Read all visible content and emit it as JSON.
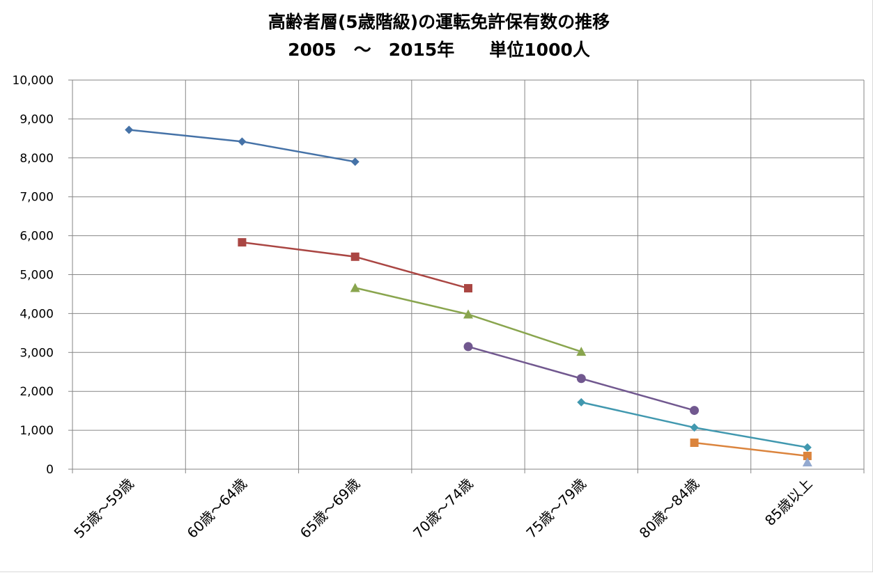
{
  "chart_data": {
    "type": "line",
    "title": "高齢者層(5歳階級)の運転免許保有数の推移",
    "subtitle": "2005　～　2015年　　単位1000人",
    "xlabel": "",
    "ylabel": "",
    "categories": [
      "55歳～59歳",
      "60歳～64歳",
      "65歳～69歳",
      "70歳～74歳",
      "75歳～79歳",
      "80歳～84歳",
      "85歳以上"
    ],
    "ylim": [
      0,
      10000
    ],
    "yticks": [
      0,
      1000,
      2000,
      3000,
      4000,
      5000,
      6000,
      7000,
      8000,
      9000,
      10000
    ],
    "ytick_labels": [
      "0",
      "1,000",
      "2,000",
      "3,000",
      "4,000",
      "5,000",
      "6,000",
      "7,000",
      "8,000",
      "9,000",
      "10,000"
    ],
    "grid": true,
    "legend": "none",
    "series": [
      {
        "color": "#4572a7",
        "marker": "diamond",
        "points": [
          [
            0,
            8720
          ],
          [
            1,
            8420
          ],
          [
            2,
            7900
          ]
        ]
      },
      {
        "color": "#aa4643",
        "marker": "square",
        "points": [
          [
            1,
            5830
          ],
          [
            2,
            5460
          ],
          [
            3,
            4650
          ]
        ]
      },
      {
        "color": "#89a54e",
        "marker": "triangle",
        "points": [
          [
            2,
            4660
          ],
          [
            3,
            3980
          ],
          [
            4,
            3020
          ]
        ]
      },
      {
        "color": "#71588f",
        "marker": "circle",
        "points": [
          [
            3,
            3150
          ],
          [
            4,
            2330
          ],
          [
            5,
            1510
          ]
        ]
      },
      {
        "color": "#4198af",
        "marker": "diamond",
        "points": [
          [
            4,
            1720
          ],
          [
            5,
            1070
          ],
          [
            6,
            560
          ]
        ]
      },
      {
        "color": "#db843d",
        "marker": "square",
        "points": [
          [
            5,
            680
          ],
          [
            6,
            340
          ]
        ]
      },
      {
        "color": "#93a9cf",
        "marker": "triangle",
        "points": [
          [
            6,
            180
          ]
        ]
      }
    ]
  }
}
